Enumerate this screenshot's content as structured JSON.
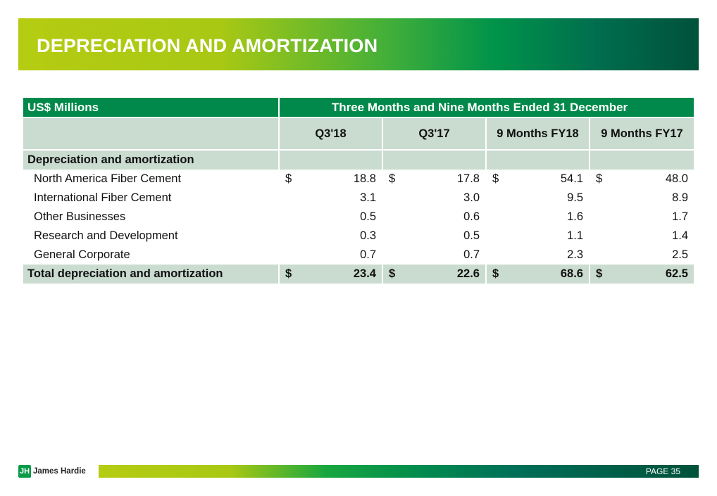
{
  "title": "DEPRECIATION AND AMORTIZATION",
  "table": {
    "unit_label": "US$ Millions",
    "period_label": "Three Months and Nine Months Ended 31 December",
    "columns": [
      "Q3'18",
      "Q3'17",
      "9 Months FY18",
      "9 Months FY17"
    ],
    "section": "Depreciation and amortization",
    "currency": "$",
    "rows": [
      {
        "label": "North America Fiber Cement",
        "values": [
          "18.8",
          "17.8",
          "54.1",
          "48.0"
        ],
        "dollar": true
      },
      {
        "label": "International Fiber Cement",
        "values": [
          "3.1",
          "3.0",
          "9.5",
          "8.9"
        ],
        "dollar": false
      },
      {
        "label": "Other Businesses",
        "values": [
          "0.5",
          "0.6",
          "1.6",
          "1.7"
        ],
        "dollar": false
      },
      {
        "label": "Research and Development",
        "values": [
          "0.3",
          "0.5",
          "1.1",
          "1.4"
        ],
        "dollar": false
      },
      {
        "label": "General Corporate",
        "values": [
          "0.7",
          "0.7",
          "2.3",
          "2.5"
        ],
        "dollar": false
      }
    ],
    "total": {
      "label": "Total depreciation and amortization",
      "values": [
        "23.4",
        "22.6",
        "68.6",
        "62.5"
      ]
    }
  },
  "footer": {
    "logo_text": "James Hardie",
    "logo_mark": "JH",
    "page": "PAGE  35"
  }
}
